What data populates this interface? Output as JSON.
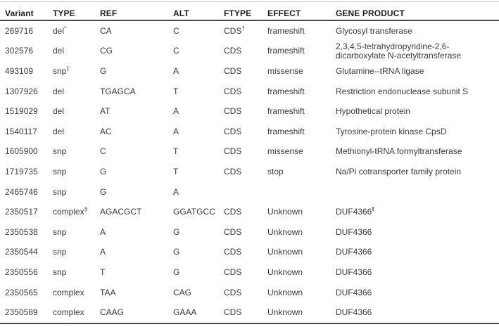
{
  "styles": {
    "rule_dark": "#4c4c4c",
    "rule_light": "#c4c4c4",
    "text_color": "#3b3b3b",
    "header_text_color": "#1f1f1f",
    "background": "#ffffff"
  },
  "table": {
    "columns": [
      "Variant",
      "TYPE",
      "REF",
      "ALT",
      "FTYPE",
      "EFFECT",
      "GENE PRODUCT"
    ],
    "rows": [
      {
        "variant": "269716",
        "type": "del",
        "type_sup": "*",
        "ref": "CA",
        "alt": "C",
        "ftype": "CDS",
        "ftype_sup": "†",
        "effect": "frameshift",
        "gene": "Glycosyl transferase",
        "gene_sup": ""
      },
      {
        "variant": "302576",
        "type": "del",
        "type_sup": "",
        "ref": "CG",
        "alt": "C",
        "ftype": "CDS",
        "ftype_sup": "",
        "effect": "frameshift",
        "gene": "2,3,4,5-tetrahydropyridine-2,6-dicarboxylate N-acetyltransferase",
        "gene_sup": ""
      },
      {
        "variant": "493109",
        "type": "snp",
        "type_sup": "‡",
        "ref": "G",
        "alt": "A",
        "ftype": "CDS",
        "ftype_sup": "",
        "effect": "missense",
        "gene": "Glutamine--tRNA ligase",
        "gene_sup": ""
      },
      {
        "variant": "1307926",
        "type": "del",
        "type_sup": "",
        "ref": "TGAGCA",
        "alt": "T",
        "ftype": "CDS",
        "ftype_sup": "",
        "effect": "frameshift",
        "gene": "Restriction endonuclease subunit S",
        "gene_sup": ""
      },
      {
        "variant": "1519029",
        "type": "del",
        "type_sup": "",
        "ref": "AT",
        "alt": "A",
        "ftype": "CDS",
        "ftype_sup": "",
        "effect": "frameshift",
        "gene": "Hypothetical protein",
        "gene_sup": ""
      },
      {
        "variant": "1540117",
        "type": "del",
        "type_sup": "",
        "ref": "AC",
        "alt": "A",
        "ftype": "CDS",
        "ftype_sup": "",
        "effect": "frameshift",
        "gene": "Tyrosine-protein kinase CpsD",
        "gene_sup": ""
      },
      {
        "variant": "1605900",
        "type": "snp",
        "type_sup": "",
        "ref": "C",
        "alt": "T",
        "ftype": "CDS",
        "ftype_sup": "",
        "effect": "missense",
        "gene": "Methionyl-tRNA formyltransferase",
        "gene_sup": ""
      },
      {
        "variant": "1719735",
        "type": "snp",
        "type_sup": "",
        "ref": "G",
        "alt": "T",
        "ftype": "CDS",
        "ftype_sup": "",
        "effect": "stop",
        "gene": "Na/Pi cotransporter family protein",
        "gene_sup": ""
      },
      {
        "variant": "2465746",
        "type": "snp",
        "type_sup": "",
        "ref": "G",
        "alt": "A",
        "ftype": "",
        "ftype_sup": "",
        "effect": "",
        "gene": "",
        "gene_sup": ""
      },
      {
        "variant": "2350517",
        "type": "complex",
        "type_sup": "§",
        "ref": "AGACGCT",
        "alt": "GGATGCC",
        "ftype": "CDS",
        "ftype_sup": "",
        "effect": "Unknown",
        "gene": "DUF4366",
        "gene_sup": "‖"
      },
      {
        "variant": "2350538",
        "type": "snp",
        "type_sup": "",
        "ref": "A",
        "alt": "G",
        "ftype": "CDS",
        "ftype_sup": "",
        "effect": "Unknown",
        "gene": "DUF4366",
        "gene_sup": ""
      },
      {
        "variant": "2350544",
        "type": "snp",
        "type_sup": "",
        "ref": "A",
        "alt": "G",
        "ftype": "CDS",
        "ftype_sup": "",
        "effect": "Unknown",
        "gene": "DUF4366",
        "gene_sup": ""
      },
      {
        "variant": "2350556",
        "type": "snp",
        "type_sup": "",
        "ref": "T",
        "alt": "G",
        "ftype": "CDS",
        "ftype_sup": "",
        "effect": "Unknown",
        "gene": "DUF4366",
        "gene_sup": ""
      },
      {
        "variant": "2350565",
        "type": "complex",
        "type_sup": "",
        "ref": "TAA",
        "alt": "CAG",
        "ftype": "CDS",
        "ftype_sup": "",
        "effect": "Unknown",
        "gene": "DUF4366",
        "gene_sup": ""
      },
      {
        "variant": "2350589",
        "type": "complex",
        "type_sup": "",
        "ref": "CAAG",
        "alt": "GAAA",
        "ftype": "CDS",
        "ftype_sup": "",
        "effect": "Unknown",
        "gene": "DUF4366",
        "gene_sup": ""
      }
    ]
  }
}
